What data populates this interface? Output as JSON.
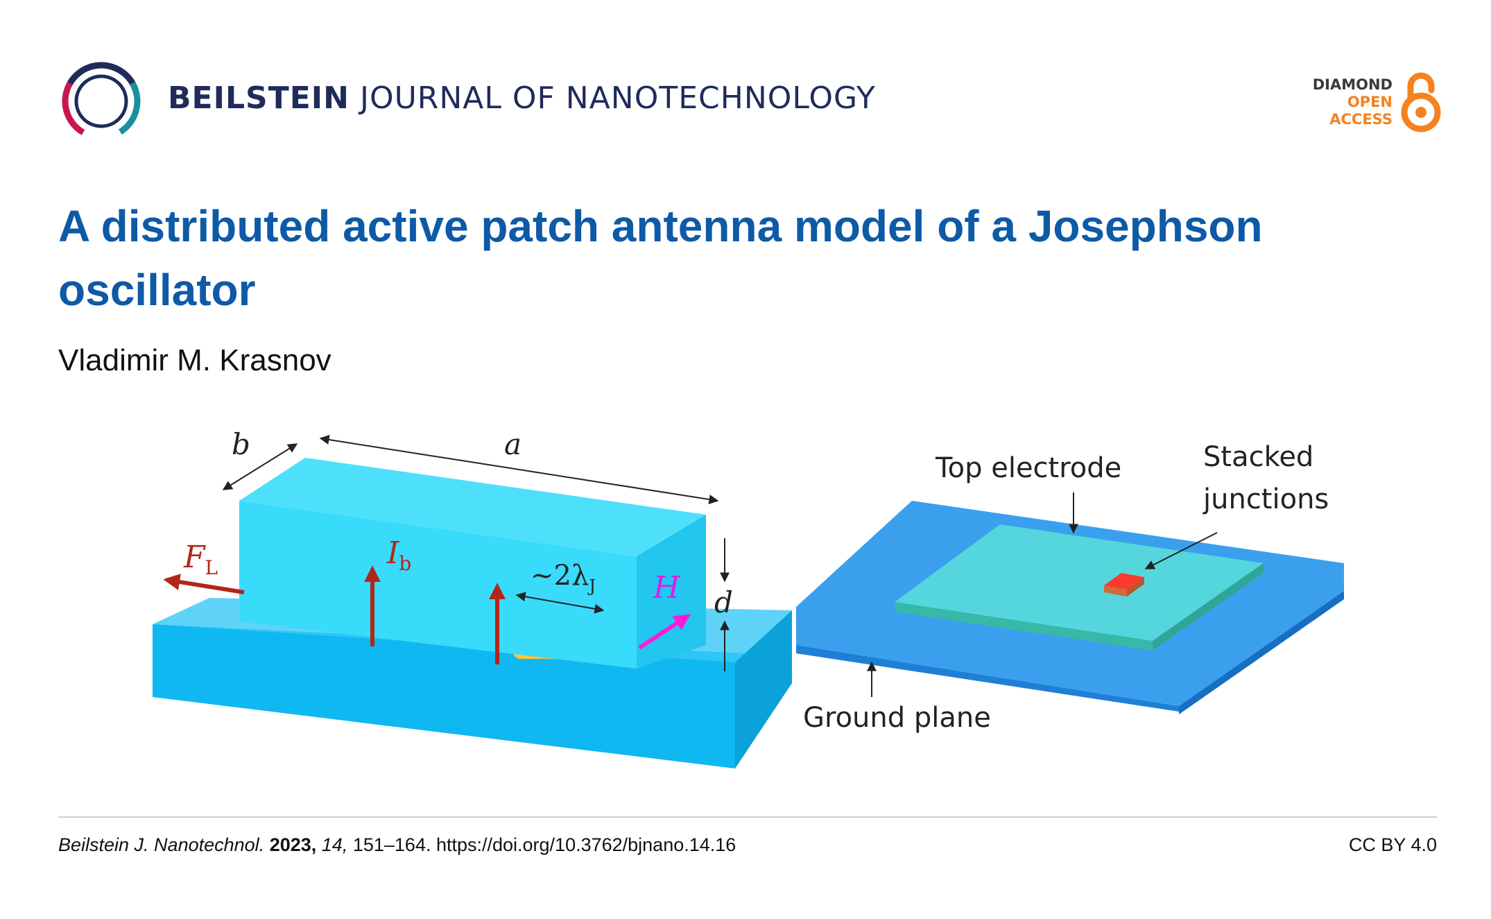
{
  "header": {
    "journal_strong": "BEILSTEIN",
    "journal_rest": "JOURNAL OF NANOTECHNOLOGY",
    "badge": {
      "line1": "DIAMOND",
      "line2": "OPEN",
      "line3": "ACCESS"
    }
  },
  "article": {
    "title": "A distributed active patch antenna model of a Josephson oscillator",
    "author": "Vladimir M. Krasnov"
  },
  "figure": {
    "left": {
      "dim_b": "b",
      "dim_a": "a",
      "dim_d": "d",
      "force_main": "F",
      "force_sub": "L",
      "current_main": "I",
      "current_sub": "b",
      "wavelength_main": "~2λ",
      "wavelength_sub": "J",
      "field": "H"
    },
    "right": {
      "top_electrode": "Top electrode",
      "stacked_line1": "Stacked",
      "stacked_line2": "junctions",
      "ground_plane": "Ground plane"
    }
  },
  "footer": {
    "journal_abbrev": "Beilstein J. Nanotechnol.",
    "year": "2023,",
    "volume": "14,",
    "pages_doi": "151–164. https://doi.org/10.3762/bjnano.14.16",
    "license": "CC BY 4.0"
  },
  "colors": {
    "title": "#0d5aa7",
    "journal": "#1f2b5b",
    "open_access": "#f58220",
    "substrate_blue": "#10b8f2",
    "junction_yellow": "#ffe94a",
    "plate_blue": "#3aa0ee",
    "electrode_teal": "#55d6dc"
  }
}
